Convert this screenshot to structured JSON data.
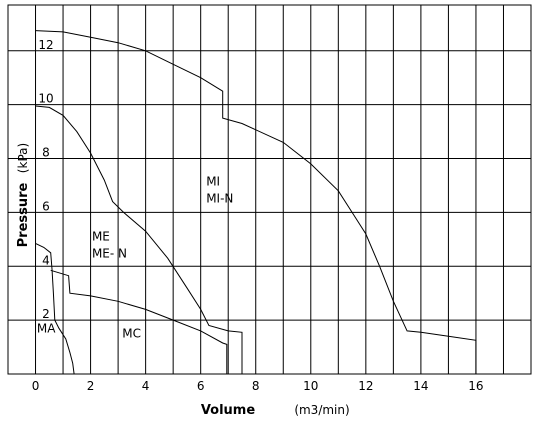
{
  "chart_data": {
    "type": "line",
    "xlabel": "Volume",
    "xunit": "(m3/min)",
    "ylabel": "Pressure",
    "yunit": "(kPa)",
    "xlim": [
      -1,
      18
    ],
    "ylim": [
      0,
      13.7
    ],
    "x_ticks": [
      "0",
      "2",
      "4",
      "6",
      "8",
      "10",
      "12",
      "14",
      "16"
    ],
    "y_ticks": [
      "2",
      "4",
      "6",
      "8",
      "10",
      "12"
    ],
    "grid": true,
    "series": [
      {
        "name": "MA",
        "x": [
          0,
          0.3,
          0.55,
          0.6,
          0.65,
          0.7,
          0.85,
          1.1,
          1.25,
          1.35,
          1.4
        ],
        "y": [
          4.85,
          4.7,
          4.5,
          3.9,
          3.0,
          2.0,
          1.7,
          1.3,
          0.8,
          0.4,
          0.0
        ]
      },
      {
        "name": "MC",
        "x": [
          0.55,
          1.2,
          1.25,
          2.0,
          3.0,
          4.0,
          5.0,
          6.0,
          6.8,
          6.95,
          6.95
        ],
        "y": [
          3.85,
          3.65,
          3.0,
          2.9,
          2.7,
          2.4,
          2.0,
          1.6,
          1.15,
          1.1,
          0.0
        ]
      },
      {
        "name": "ME\nME- N",
        "x": [
          0,
          0.5,
          1.0,
          1.5,
          2.0,
          2.5,
          2.8,
          3.2,
          4.0,
          4.8,
          5.5,
          6.0,
          6.3,
          7.0,
          7.5,
          7.5
        ],
        "y": [
          9.95,
          9.9,
          9.6,
          9.0,
          8.2,
          7.2,
          6.4,
          6.0,
          5.3,
          4.3,
          3.2,
          2.4,
          1.8,
          1.6,
          1.55,
          0.0
        ]
      },
      {
        "name": "MI\nMI-N",
        "x": [
          0,
          1.0,
          2.0,
          3.0,
          4.0,
          5.0,
          6.0,
          6.8,
          6.8,
          7.5,
          9.0,
          10.0,
          11.0,
          11.5,
          12.0,
          12.5,
          13.0,
          13.5,
          14.0,
          15.0,
          16.0,
          16.0
        ],
        "y": [
          12.75,
          12.7,
          12.5,
          12.3,
          12.0,
          11.5,
          11.0,
          10.5,
          9.5,
          9.3,
          8.6,
          7.8,
          6.8,
          6.0,
          5.2,
          4.0,
          2.7,
          1.6,
          1.55,
          1.4,
          1.25,
          0.0
        ]
      }
    ]
  }
}
